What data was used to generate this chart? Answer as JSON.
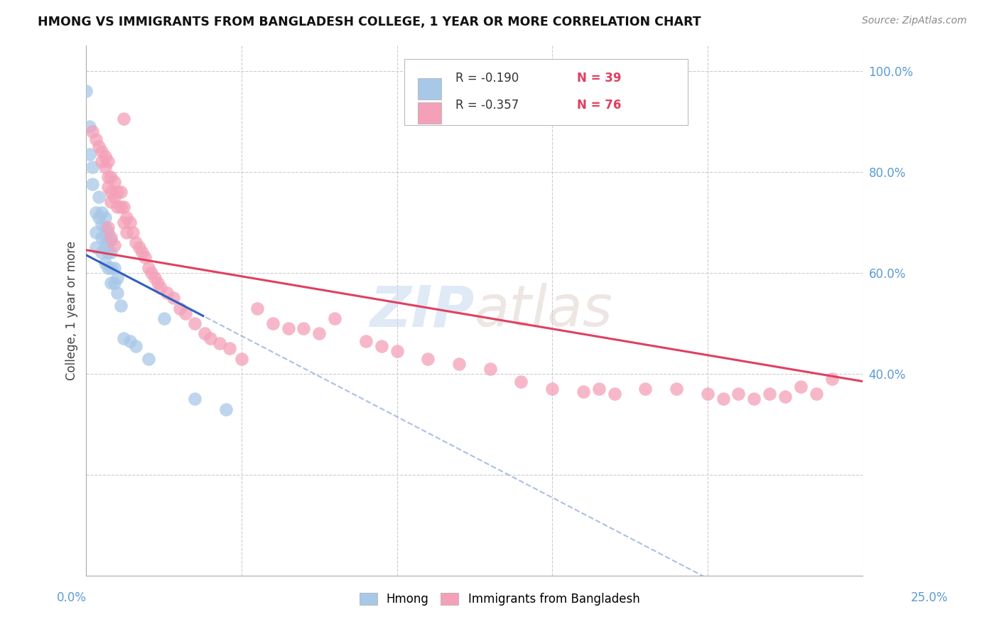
{
  "title": "HMONG VS IMMIGRANTS FROM BANGLADESH COLLEGE, 1 YEAR OR MORE CORRELATION CHART",
  "source": "Source: ZipAtlas.com",
  "ylabel": "College, 1 year or more",
  "legend_label1": "Hmong",
  "legend_label2": "Immigrants from Bangladesh",
  "R1": "-0.190",
  "N1": "39",
  "R2": "-0.357",
  "N2": "76",
  "color_blue": "#a8c8e8",
  "color_pink": "#f4a0b8",
  "line_color_blue": "#3060c0",
  "line_color_pink": "#e0406080",
  "line_color_pink_solid": "#e04060",
  "xlim": [
    0.0,
    0.25
  ],
  "ylim": [
    0.0,
    1.05
  ],
  "hmong_x": [
    0.0,
    0.001,
    0.001,
    0.002,
    0.002,
    0.003,
    0.003,
    0.003,
    0.004,
    0.004,
    0.005,
    0.005,
    0.005,
    0.005,
    0.006,
    0.006,
    0.006,
    0.006,
    0.006,
    0.007,
    0.007,
    0.007,
    0.007,
    0.008,
    0.008,
    0.008,
    0.008,
    0.009,
    0.009,
    0.01,
    0.01,
    0.011,
    0.012,
    0.014,
    0.016,
    0.02,
    0.025,
    0.035,
    0.045
  ],
  "hmong_y": [
    0.96,
    0.89,
    0.835,
    0.81,
    0.775,
    0.72,
    0.68,
    0.65,
    0.75,
    0.71,
    0.72,
    0.695,
    0.67,
    0.64,
    0.71,
    0.69,
    0.67,
    0.65,
    0.62,
    0.68,
    0.66,
    0.64,
    0.61,
    0.665,
    0.64,
    0.61,
    0.58,
    0.61,
    0.58,
    0.59,
    0.56,
    0.535,
    0.47,
    0.465,
    0.455,
    0.43,
    0.51,
    0.35,
    0.33
  ],
  "bangladesh_x": [
    0.002,
    0.003,
    0.004,
    0.005,
    0.005,
    0.006,
    0.006,
    0.007,
    0.007,
    0.007,
    0.008,
    0.008,
    0.008,
    0.009,
    0.009,
    0.01,
    0.01,
    0.011,
    0.011,
    0.012,
    0.012,
    0.013,
    0.013,
    0.014,
    0.015,
    0.016,
    0.017,
    0.018,
    0.019,
    0.02,
    0.021,
    0.022,
    0.023,
    0.024,
    0.026,
    0.028,
    0.03,
    0.032,
    0.035,
    0.038,
    0.04,
    0.043,
    0.046,
    0.05,
    0.055,
    0.06,
    0.065,
    0.07,
    0.075,
    0.08,
    0.09,
    0.095,
    0.1,
    0.11,
    0.12,
    0.13,
    0.14,
    0.15,
    0.16,
    0.165,
    0.17,
    0.18,
    0.19,
    0.2,
    0.205,
    0.21,
    0.215,
    0.22,
    0.225,
    0.23,
    0.235,
    0.24,
    0.007,
    0.008,
    0.009,
    0.012
  ],
  "bangladesh_y": [
    0.88,
    0.865,
    0.85,
    0.84,
    0.82,
    0.83,
    0.81,
    0.82,
    0.79,
    0.77,
    0.79,
    0.76,
    0.74,
    0.78,
    0.75,
    0.76,
    0.73,
    0.76,
    0.73,
    0.73,
    0.7,
    0.71,
    0.68,
    0.7,
    0.68,
    0.66,
    0.65,
    0.64,
    0.63,
    0.61,
    0.6,
    0.59,
    0.58,
    0.57,
    0.56,
    0.55,
    0.53,
    0.52,
    0.5,
    0.48,
    0.47,
    0.46,
    0.45,
    0.43,
    0.53,
    0.5,
    0.49,
    0.49,
    0.48,
    0.51,
    0.465,
    0.455,
    0.445,
    0.43,
    0.42,
    0.41,
    0.385,
    0.37,
    0.365,
    0.37,
    0.36,
    0.37,
    0.37,
    0.36,
    0.35,
    0.36,
    0.35,
    0.36,
    0.355,
    0.375,
    0.36,
    0.39,
    0.69,
    0.67,
    0.655,
    0.905
  ]
}
